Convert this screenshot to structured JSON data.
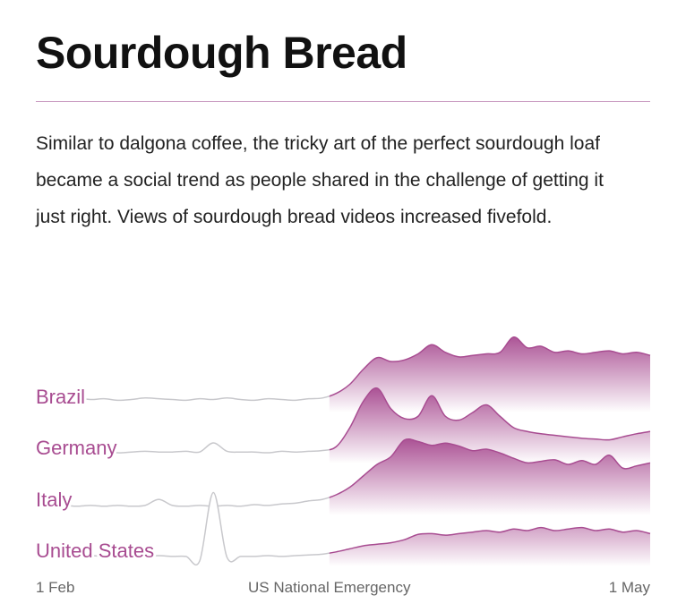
{
  "chart_data": {
    "type": "ridgeline",
    "title": "Sourdough Bread",
    "subtitle": "Similar to dalgona coffee, the tricky art of the perfect sourdough loaf became a social trend as people shared in the challenge of getting it just right. Views of sourdough bread videos increased fivefold.",
    "x": [
      0,
      2,
      4,
      6,
      8,
      10,
      12,
      14,
      16,
      18,
      20,
      22,
      24,
      26,
      28,
      30,
      32,
      34,
      36,
      38,
      40,
      42,
      44,
      46,
      48,
      50,
      52,
      54,
      56,
      58,
      60,
      62,
      64,
      66,
      68,
      70,
      72,
      74,
      76,
      78,
      80,
      82,
      84,
      86,
      88,
      90
    ],
    "xlim": [
      0,
      90
    ],
    "xticks": [
      {
        "value": 0,
        "label": "1 Feb"
      },
      {
        "value": 43,
        "label": "US National Emergency"
      },
      {
        "value": 90,
        "label": "1 May"
      }
    ],
    "ylim": [
      0,
      100
    ],
    "before_color": "#c8c8cc",
    "series": [
      {
        "name": "Brazil",
        "color": "#a84c91",
        "values": [
          10,
          11,
          9,
          12,
          10,
          11,
          9,
          10,
          12,
          11,
          10,
          9,
          11,
          10,
          12,
          10,
          9,
          11,
          10,
          9,
          11,
          12,
          18,
          30,
          50,
          65,
          60,
          62,
          70,
          82,
          72,
          66,
          68,
          70,
          72,
          92,
          78,
          80,
          72,
          74,
          70,
          72,
          74,
          70,
          72,
          68
        ]
      },
      {
        "name": "Germany",
        "color": "#a84c91",
        "values": [
          8,
          7,
          9,
          8,
          8,
          9,
          7,
          8,
          9,
          8,
          8,
          9,
          8,
          20,
          9,
          8,
          8,
          7,
          9,
          8,
          9,
          10,
          15,
          40,
          75,
          92,
          65,
          52,
          55,
          82,
          55,
          50,
          60,
          70,
          55,
          40,
          35,
          32,
          30,
          28,
          26,
          25,
          24,
          28,
          32,
          35
        ]
      },
      {
        "name": "Italy",
        "color": "#a84c91",
        "values": [
          5,
          5,
          6,
          5,
          6,
          5,
          6,
          5,
          6,
          14,
          6,
          5,
          6,
          5,
          6,
          5,
          7,
          6,
          8,
          9,
          12,
          14,
          20,
          30,
          45,
          60,
          70,
          92,
          90,
          85,
          88,
          84,
          78,
          80,
          75,
          68,
          62,
          64,
          66,
          60,
          65,
          60,
          72,
          55,
          58,
          62
        ]
      },
      {
        "name": "United States",
        "color": "#a84c91",
        "values": [
          6,
          6,
          5,
          6,
          7,
          6,
          6,
          5,
          6,
          7,
          6,
          6,
          0,
          90,
          5,
          6,
          6,
          7,
          6,
          7,
          8,
          9,
          12,
          16,
          20,
          22,
          24,
          28,
          35,
          36,
          34,
          36,
          38,
          40,
          38,
          42,
          40,
          44,
          40,
          42,
          44,
          40,
          42,
          38,
          40,
          36
        ]
      }
    ]
  }
}
